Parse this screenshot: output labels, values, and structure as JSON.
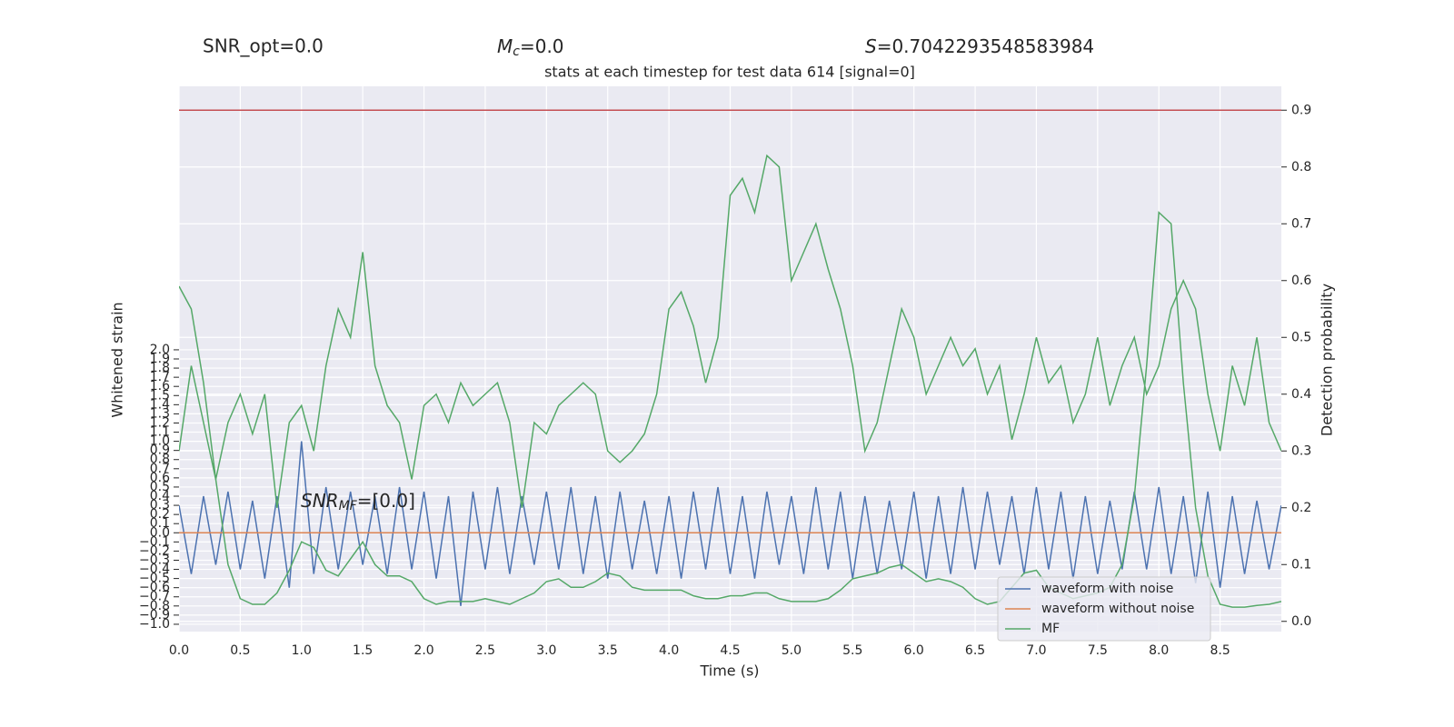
{
  "chart_data": {
    "type": "line",
    "top_texts": {
      "snr_opt": "SNR_opt=0.0",
      "mc": {
        "symbol": "M",
        "sub": "c",
        "rest": "=0.0"
      },
      "s": {
        "symbol": "S",
        "rest": "=0.7042293548583984"
      }
    },
    "title": "stats at each timestep for test data 614 [signal=0]",
    "annotation": {
      "symbol": "SNR",
      "sub": "MF",
      "rest": "=[0.0]"
    },
    "xlabel": "Time (s)",
    "ylabel": "Whitened strain",
    "y2label": "Detection probability",
    "xlim": [
      0,
      9.0
    ],
    "ylim": [
      -1.08,
      4.88
    ],
    "y2lim": [
      -0.018,
      0.942
    ],
    "xticks": [
      {
        "value": 0,
        "label": "0.0"
      },
      0.5,
      {
        "value": 1,
        "label": "1.0"
      },
      1.5,
      {
        "value": 2,
        "label": "2.0"
      },
      2.5,
      {
        "value": 3,
        "label": "3.0"
      },
      3.5,
      {
        "value": 4,
        "label": "4.0"
      },
      4.5,
      {
        "value": 5,
        "label": "5.0"
      },
      5.5,
      {
        "value": 6,
        "label": "6.0"
      },
      6.5,
      {
        "value": 7,
        "label": "7.0"
      },
      7.5,
      {
        "value": 8,
        "label": "8.0"
      },
      8.5
    ],
    "yticks": [
      {
        "value": -1,
        "label": "−1.0"
      },
      {
        "value": -0.9,
        "label": "−0.9"
      },
      {
        "value": -0.8,
        "label": "−0.8"
      },
      {
        "value": -0.7,
        "label": "−0.7"
      },
      {
        "value": -0.6,
        "label": "−0.6"
      },
      {
        "value": -0.5,
        "label": "−0.5"
      },
      {
        "value": -0.4,
        "label": "−0.4"
      },
      {
        "value": -0.3,
        "label": "−0.3"
      },
      {
        "value": -0.2,
        "label": "−0.2"
      },
      {
        "value": -0.1,
        "label": "−0.1"
      },
      {
        "value": 0,
        "label": "0.0"
      },
      0.1,
      0.2,
      0.3,
      0.4,
      0.5,
      0.6,
      0.7,
      0.8,
      0.9,
      {
        "value": 1,
        "label": "1.0"
      },
      1.1,
      1.2,
      1.3,
      1.4,
      1.5,
      1.6,
      1.7,
      1.8,
      1.9,
      {
        "value": 2,
        "label": "2.0"
      }
    ],
    "y2ticks": [
      {
        "value": 0,
        "label": "0.0"
      },
      0.1,
      0.2,
      0.3,
      0.4,
      0.5,
      0.6,
      0.7,
      0.8,
      0.9
    ],
    "grid": true,
    "legend": "lower right",
    "hlines": [
      {
        "value": 0.9,
        "axis": "y2",
        "color": "#c44e52"
      }
    ],
    "x": [
      0.0,
      0.1,
      0.2,
      0.3,
      0.4,
      0.5,
      0.6,
      0.7,
      0.8,
      0.9,
      1.0,
      1.1,
      1.2,
      1.3,
      1.4,
      1.5,
      1.6,
      1.7,
      1.8,
      1.9,
      2.0,
      2.1,
      2.2,
      2.3,
      2.4,
      2.5,
      2.6,
      2.7,
      2.8,
      2.9,
      3.0,
      3.1,
      3.2,
      3.3,
      3.4,
      3.5,
      3.6,
      3.7,
      3.8,
      3.9,
      4.0,
      4.1,
      4.2,
      4.3,
      4.4,
      4.5,
      4.6,
      4.7,
      4.8,
      4.9,
      5.0,
      5.1,
      5.2,
      5.3,
      5.4,
      5.5,
      5.6,
      5.7,
      5.8,
      5.9,
      6.0,
      6.1,
      6.2,
      6.3,
      6.4,
      6.5,
      6.6,
      6.7,
      6.8,
      6.9,
      7.0,
      7.1,
      7.2,
      7.3,
      7.4,
      7.5,
      7.6,
      7.7,
      7.8,
      7.9,
      8.0,
      8.1,
      8.2,
      8.3,
      8.4,
      8.5,
      8.6,
      8.7,
      8.8,
      8.9,
      9.0
    ],
    "series": [
      {
        "name": "waveform with noise",
        "color": "#4c72b0",
        "values": [
          0.3,
          -0.45,
          0.4,
          -0.35,
          0.45,
          -0.4,
          0.35,
          -0.5,
          0.4,
          -0.6,
          1.0,
          -0.45,
          0.5,
          -0.4,
          0.45,
          -0.35,
          0.4,
          -0.45,
          0.5,
          -0.4,
          0.45,
          -0.5,
          0.4,
          -0.8,
          0.45,
          -0.4,
          0.5,
          -0.45,
          0.4,
          -0.35,
          0.45,
          -0.4,
          0.5,
          -0.45,
          0.4,
          -0.5,
          0.45,
          -0.4,
          0.35,
          -0.45,
          0.4,
          -0.5,
          0.45,
          -0.4,
          0.5,
          -0.45,
          0.4,
          -0.5,
          0.45,
          -0.35,
          0.4,
          -0.45,
          0.5,
          -0.4,
          0.45,
          -0.5,
          0.4,
          -0.45,
          0.35,
          -0.4,
          0.45,
          -0.5,
          0.4,
          -0.45,
          0.5,
          -0.4,
          0.45,
          -0.35,
          0.4,
          -0.45,
          0.5,
          -0.4,
          0.45,
          -0.5,
          0.4,
          -0.45,
          0.35,
          -0.4,
          0.45,
          -0.4,
          0.5,
          -0.45,
          0.4,
          -0.55,
          0.45,
          -0.6,
          0.4,
          -0.45,
          0.35,
          -0.4,
          0.3
        ]
      },
      {
        "name": "waveform without noise",
        "color": "#dd8452",
        "values": [
          0,
          0,
          0,
          0,
          0,
          0,
          0,
          0,
          0,
          0,
          0,
          0,
          0,
          0,
          0,
          0,
          0,
          0,
          0,
          0,
          0,
          0,
          0,
          0,
          0,
          0,
          0,
          0,
          0,
          0,
          0,
          0,
          0,
          0,
          0,
          0,
          0,
          0,
          0,
          0,
          0,
          0,
          0,
          0,
          0,
          0,
          0,
          0,
          0,
          0,
          0,
          0,
          0,
          0,
          0,
          0,
          0,
          0,
          0,
          0,
          0,
          0,
          0,
          0,
          0,
          0,
          0,
          0,
          0,
          0,
          0,
          0,
          0,
          0,
          0,
          0,
          0,
          0,
          0,
          0,
          0,
          0,
          0,
          0,
          0,
          0,
          0,
          0,
          0,
          0,
          0
        ]
      },
      {
        "color": "#55a868",
        "axis": "y2",
        "values": [
          0.3,
          0.45,
          0.35,
          0.25,
          0.35,
          0.4,
          0.33,
          0.4,
          0.2,
          0.35,
          0.38,
          0.3,
          0.45,
          0.55,
          0.5,
          0.65,
          0.45,
          0.38,
          0.35,
          0.25,
          0.38,
          0.4,
          0.35,
          0.42,
          0.38,
          0.4,
          0.42,
          0.35,
          0.2,
          0.35,
          0.33,
          0.38,
          0.4,
          0.42,
          0.4,
          0.3,
          0.28,
          0.3,
          0.33,
          0.4,
          0.55,
          0.58,
          0.52,
          0.42,
          0.5,
          0.75,
          0.78,
          0.72,
          0.82,
          0.8,
          0.6,
          0.65,
          0.7,
          0.62,
          0.55,
          0.45,
          0.3,
          0.35,
          0.45,
          0.55,
          0.5,
          0.4,
          0.45,
          0.5,
          0.45,
          0.48,
          0.4,
          0.45,
          0.32,
          0.4,
          0.5,
          0.42,
          0.45,
          0.35,
          0.4,
          0.5,
          0.38,
          0.45,
          0.5,
          0.4,
          0.45,
          0.55,
          0.6,
          0.55,
          0.4,
          0.3,
          0.45,
          0.38,
          0.5,
          0.35,
          0.3
        ]
      },
      {
        "name": "MF",
        "color": "#55a868",
        "axis": "y2",
        "values": [
          0.59,
          0.55,
          0.42,
          0.25,
          0.1,
          0.04,
          0.03,
          0.03,
          0.05,
          0.09,
          0.14,
          0.13,
          0.09,
          0.08,
          0.11,
          0.14,
          0.1,
          0.08,
          0.08,
          0.07,
          0.04,
          0.03,
          0.035,
          0.035,
          0.035,
          0.04,
          0.035,
          0.03,
          0.04,
          0.05,
          0.07,
          0.075,
          0.06,
          0.06,
          0.07,
          0.085,
          0.08,
          0.06,
          0.055,
          0.055,
          0.055,
          0.055,
          0.045,
          0.04,
          0.04,
          0.045,
          0.045,
          0.05,
          0.05,
          0.04,
          0.035,
          0.035,
          0.035,
          0.04,
          0.055,
          0.075,
          0.08,
          0.085,
          0.095,
          0.1,
          0.085,
          0.07,
          0.075,
          0.07,
          0.06,
          0.04,
          0.03,
          0.035,
          0.06,
          0.085,
          0.09,
          0.06,
          0.05,
          0.04,
          0.045,
          0.05,
          0.06,
          0.1,
          0.22,
          0.45,
          0.72,
          0.7,
          0.42,
          0.2,
          0.08,
          0.03,
          0.025,
          0.025,
          0.028,
          0.03,
          0.035
        ]
      }
    ]
  }
}
